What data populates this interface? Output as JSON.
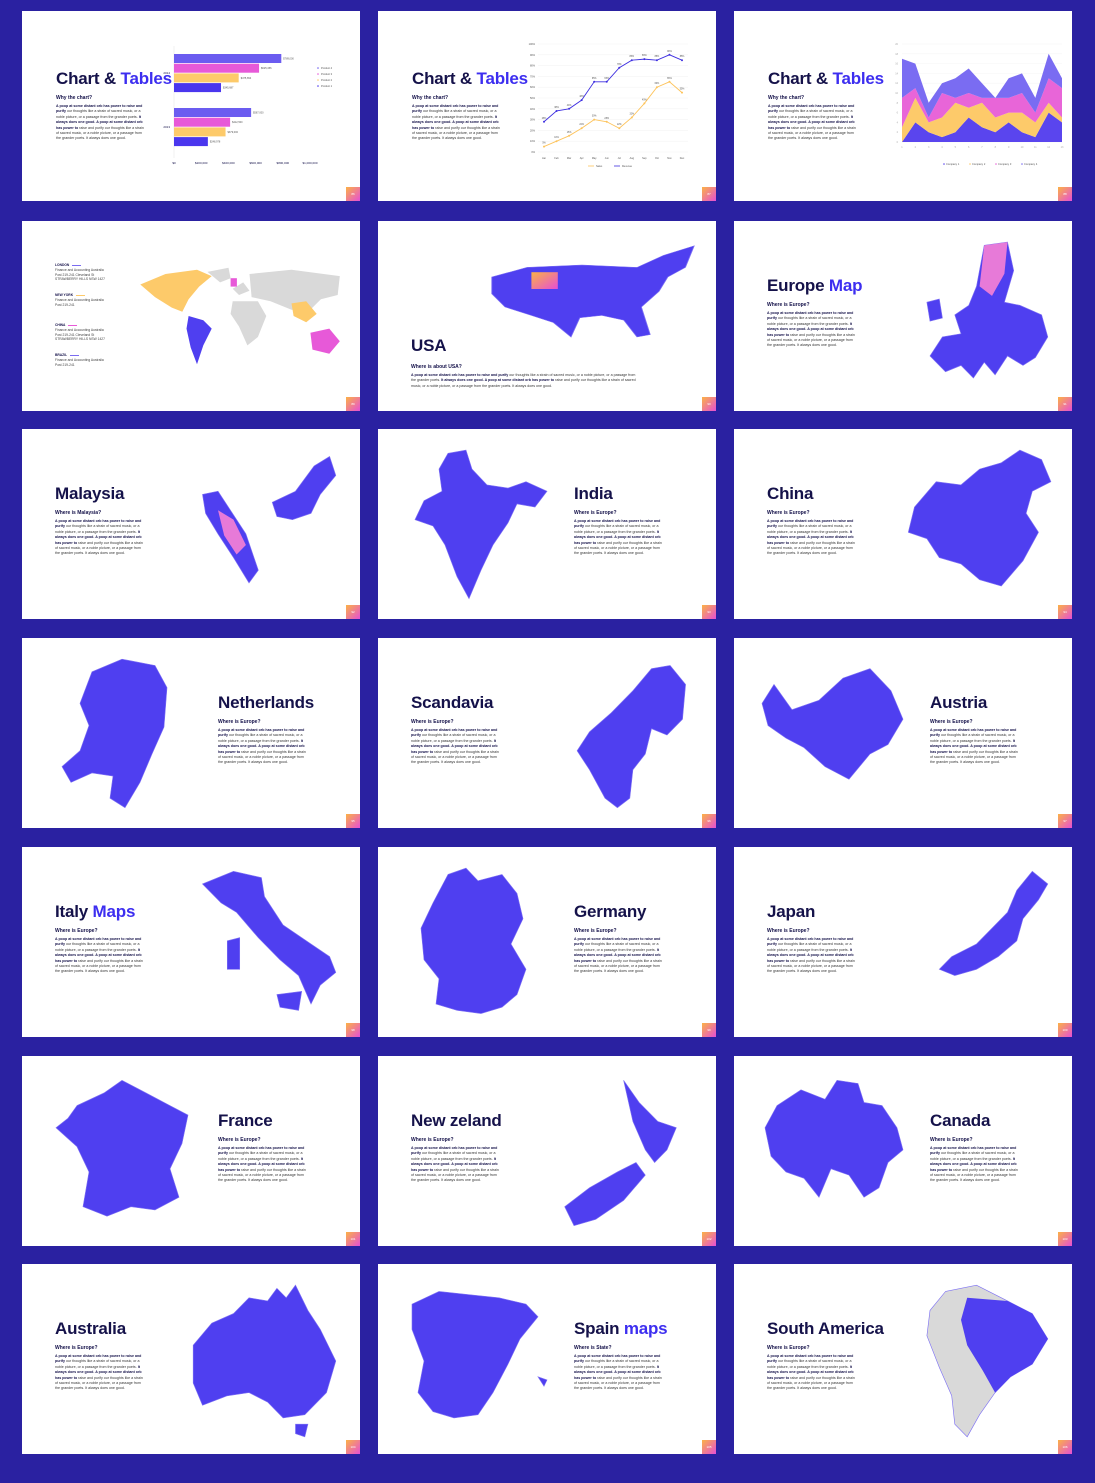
{
  "colors": {
    "background": "#2a21a1",
    "map": "#4f3ff0",
    "accent": "#3d2ef0",
    "pink": "#e759d8",
    "yellow": "#fdca6a",
    "grey": "#d9d9d9"
  },
  "body_text": {
    "bold1": "A poop at some distant orb has power to raise and purify",
    "normal1": " our thoughts like a strain of sacred music, or a noble picture, or a passage from the grander poets. ",
    "bold2": "It always does one good. A poop at some distant orb has power to",
    "normal2": " raise and purify our thoughts like a strain of sacred music, or a noble picture, or a passage from the grander poets. It always does one good."
  },
  "slides": [
    {
      "type": "chart",
      "title": "Chart & ",
      "title_accent": "Tables",
      "subtitle": "Why the chart?",
      "page": "86",
      "chart": 0
    },
    {
      "type": "chart",
      "title": "Chart & ",
      "title_accent": "Tables",
      "subtitle": "Why the chart?",
      "page": "87",
      "chart": 1
    },
    {
      "type": "chart",
      "title": "Chart & ",
      "title_accent": "Tables",
      "subtitle": "Why the chart?",
      "page": "88",
      "chart": 2
    },
    {
      "type": "world",
      "page": "89",
      "locations": [
        {
          "name": "LONDON",
          "color": "#7b6cf0",
          "lines": [
            "Finance and Accounting Australia",
            "Post 219-241 Cleveland St",
            "STRAWBERRY HILLS NSW 1427"
          ]
        },
        {
          "name": "NEW YORK",
          "color": "#fdca6a",
          "lines": [
            "Finance and Accounting Australia",
            "Post 219-241"
          ]
        },
        {
          "name": "CHINA",
          "color": "#e759d8",
          "lines": [
            "Finance and Accounting Australia",
            "Post 219-241 Cleveland St",
            "STRAWBERRY HILLS NSW 1427"
          ]
        },
        {
          "name": "BRAZIL",
          "color": "#7b6cf0",
          "lines": [
            "Finance and Accounting Australia",
            "Post 219-241"
          ]
        }
      ]
    },
    {
      "type": "usa",
      "title": "USA",
      "subtitle": "Where is about USA?",
      "page": "90",
      "map": "usa"
    },
    {
      "type": "left",
      "title": "Europe ",
      "title_accent": "Map",
      "subtitle": "Where is Europe?",
      "page": "91",
      "map": "europe"
    },
    {
      "type": "left",
      "title": "Malaysia",
      "subtitle": "Where is Malaysia?",
      "page": "92",
      "map": "malaysia"
    },
    {
      "type": "right",
      "title": "India",
      "subtitle": "Where is Europe?",
      "page": "93",
      "map": "india"
    },
    {
      "type": "left",
      "title": "China",
      "subtitle": "Where is Europe?",
      "page": "94",
      "map": "china"
    },
    {
      "type": "right",
      "title": "Netherlands",
      "subtitle": "Where is Europe?",
      "page": "95",
      "map": "netherlands"
    },
    {
      "type": "left",
      "title": "Scandavia",
      "subtitle": "Where is Europe?",
      "page": "96",
      "map": "scandinavia"
    },
    {
      "type": "right",
      "title": "Austria",
      "subtitle": "Where is Europe?",
      "page": "97",
      "map": "austria"
    },
    {
      "type": "left",
      "title": "Italy ",
      "title_accent": "Maps",
      "subtitle": "Where is Europe?",
      "page": "98",
      "map": "italy"
    },
    {
      "type": "right",
      "title": "Germany",
      "subtitle": "Where is Europe?",
      "page": "99",
      "map": "germany"
    },
    {
      "type": "left",
      "title": "Japan",
      "subtitle": "Where is Europe?",
      "page": "100",
      "map": "japan"
    },
    {
      "type": "right",
      "title": "France",
      "subtitle": "Where is Europe?",
      "page": "101",
      "map": "france"
    },
    {
      "type": "left",
      "title": "New zeland",
      "subtitle": "Where is Europe?",
      "page": "102",
      "map": "newzealand"
    },
    {
      "type": "right",
      "title": "Canada",
      "subtitle": "Where is Europe?",
      "page": "103",
      "map": "canada"
    },
    {
      "type": "left",
      "title": "Australia",
      "subtitle": "Where is Europe?",
      "page": "104",
      "map": "australia"
    },
    {
      "type": "right",
      "title": "Spain ",
      "title_accent": "maps",
      "subtitle": "Where is State?",
      "page": "105",
      "map": "spain"
    },
    {
      "type": "left",
      "title": "South America",
      "subtitle": "Where is Europe?",
      "page": "106",
      "map": "southamerica"
    }
  ],
  "chart_data": [
    {
      "type": "bar",
      "orientation": "horizontal",
      "categories": [
        "2014",
        "2013"
      ],
      "series": [
        {
          "name": "Product 4",
          "color": "#6b5cf0",
          "values": [
            789000,
            567000
          ],
          "labels": [
            "$789,000",
            "$567,000"
          ]
        },
        {
          "name": "Product 3",
          "color": "#e759d8",
          "values": [
            625456,
            412500
          ],
          "labels": [
            "$625,456",
            "$412,500"
          ]
        },
        {
          "name": "Product 2",
          "color": "#fdca6a",
          "values": [
            475654,
            379000
          ],
          "labels": [
            "$475,654",
            "$379,000"
          ]
        },
        {
          "name": "Product 1",
          "color": "#4a36ee",
          "values": [
            345687,
            248978
          ],
          "labels": [
            "$345,687",
            "$248,978"
          ]
        }
      ],
      "xlim": [
        0,
        1000000
      ],
      "xticks": [
        "$0",
        "$200,000",
        "$400,000",
        "$600,000",
        "$800,000",
        "$1,000,000"
      ],
      "legend": "right"
    },
    {
      "type": "line",
      "categories": [
        "Jan",
        "Feb",
        "Mar",
        "Apr",
        "May",
        "Jun",
        "Jul",
        "Aug",
        "Sep",
        "Oct",
        "Nov",
        "Dec"
      ],
      "series": [
        {
          "name": "Sales",
          "color": "#fdc35a",
          "values": [
            5,
            10,
            15,
            22,
            30,
            28,
            22,
            32,
            45,
            60,
            65,
            55
          ]
        },
        {
          "name": "Revenue",
          "color": "#3d2ee0",
          "values": [
            28,
            38,
            40,
            48,
            65,
            65,
            78,
            85,
            86,
            85,
            90,
            85
          ]
        }
      ],
      "ylim": [
        0,
        100
      ],
      "yticks": [
        "0%",
        "10%",
        "20%",
        "30%",
        "40%",
        "50%",
        "60%",
        "70%",
        "80%",
        "90%",
        "100%"
      ],
      "grid": true,
      "legend": "bottom"
    },
    {
      "type": "area",
      "stacked": true,
      "x": [
        1,
        2,
        3,
        4,
        5,
        6,
        7,
        8,
        9,
        10,
        11,
        12,
        13
      ],
      "series": [
        {
          "name": "Company 1",
          "color": "#5a45ee",
          "values": [
            0,
            4,
            2,
            1,
            2,
            5,
            3,
            2,
            4,
            2,
            1,
            6,
            4
          ]
        },
        {
          "name": "Company 2",
          "color": "#fdca6a",
          "values": [
            3,
            5,
            2,
            4,
            6,
            2,
            5,
            3,
            2,
            4,
            3,
            2,
            1
          ]
        },
        {
          "name": "Company 3",
          "color": "#e865d8",
          "values": [
            6,
            2,
            1,
            5,
            1,
            3,
            1,
            4,
            3,
            4,
            2,
            5,
            6
          ]
        },
        {
          "name": "Company 4",
          "color": "#7a6cf2",
          "values": [
            8,
            5,
            3,
            2,
            4,
            5,
            3,
            0,
            4,
            4,
            3,
            5,
            2
          ]
        }
      ],
      "ylim": [
        0,
        20
      ],
      "yticks": [
        "0",
        "2",
        "4",
        "6",
        "8",
        "10",
        "12",
        "14",
        "16",
        "18",
        "20"
      ],
      "legend": "bottom"
    }
  ]
}
